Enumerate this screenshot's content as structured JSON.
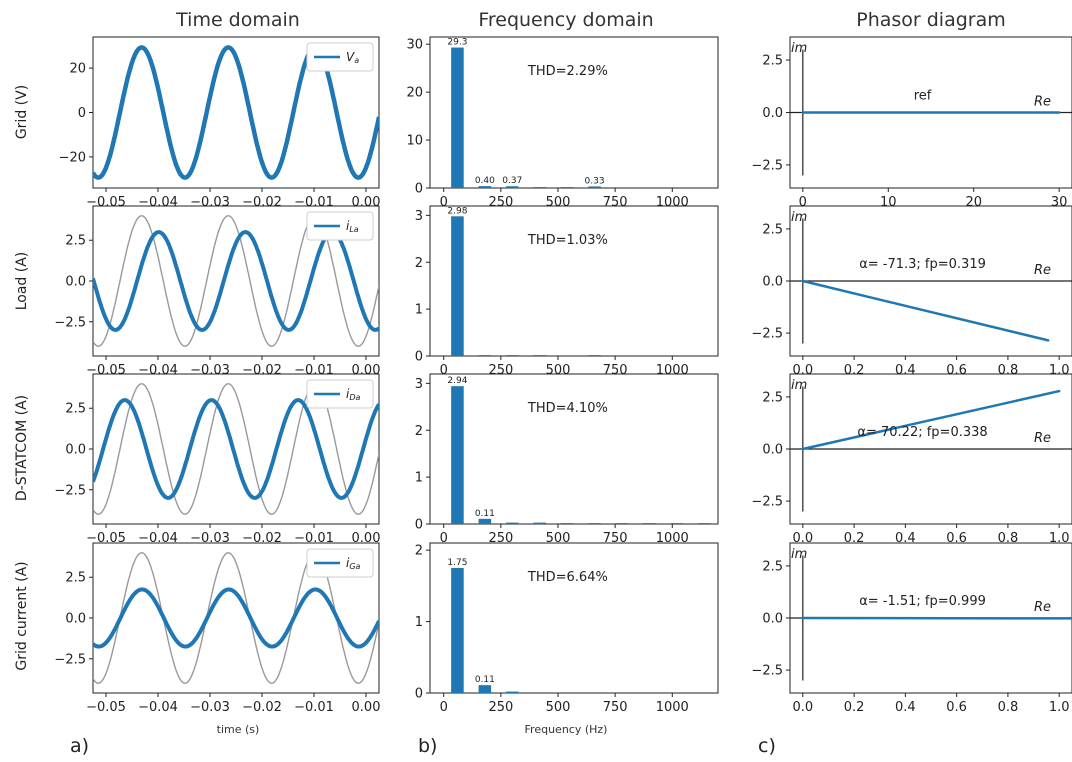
{
  "figure": {
    "columns": [
      "Time domain",
      "Frequency domain",
      "Phasor diagram"
    ],
    "rows": [
      "Grid (V)",
      "Load (A)",
      "D-STATCOM (A)",
      "Grid current (A)"
    ],
    "time_xlabel": "time (s)",
    "freq_xlabel": "Frequency (Hz)",
    "panel_letters": [
      "a)",
      "b)",
      "c)"
    ]
  },
  "chart_data": [
    {
      "type": "line",
      "panel": "time-grid",
      "xlim": [
        -0.0525,
        0.0025
      ],
      "ylim": [
        -34,
        34
      ],
      "xticks": [
        -0.05,
        -0.04,
        -0.03,
        -0.02,
        -0.01,
        0.0
      ],
      "xtick_labels": [
        "−0.05",
        "−0.04",
        "−0.03",
        "−0.02",
        "−0.01",
        "0.00"
      ],
      "yticks": [
        20,
        0,
        -20
      ],
      "ytick_labels": [
        "20",
        "0",
        "−20"
      ],
      "legend": {
        "main": "V",
        "sub": "a",
        "position": "top-right"
      },
      "series": [
        {
          "name": "Va",
          "amplitude": 29.3,
          "frequency_hz": 60,
          "phase_deg": -58,
          "color": "#1f77b4",
          "width": 4.5
        }
      ]
    },
    {
      "type": "line",
      "panel": "time-load",
      "xlim": [
        -0.0525,
        0.0025
      ],
      "ylim": [
        -4.6,
        4.6
      ],
      "xticks": [
        -0.05,
        -0.04,
        -0.03,
        -0.02,
        -0.01,
        0.0
      ],
      "xtick_labels": [
        "−0.05",
        "−0.04",
        "−0.03",
        "−0.02",
        "−0.01",
        "0.00"
      ],
      "yticks": [
        2.5,
        0.0,
        -2.5
      ],
      "ytick_labels": [
        "2.5",
        "0.0",
        "−2.5"
      ],
      "legend": {
        "main": "i",
        "sub": "La",
        "position": "top-right"
      },
      "series": [
        {
          "name": "reference",
          "amplitude": 4.0,
          "frequency_hz": 60,
          "phase_deg": -58,
          "color": "#999999",
          "width": 1.4
        },
        {
          "name": "iLa",
          "amplitude": 3.0,
          "frequency_hz": 60,
          "phase_deg": -129,
          "color": "#1f77b4",
          "width": 4.0
        }
      ]
    },
    {
      "type": "line",
      "panel": "time-dstatcom",
      "xlim": [
        -0.0525,
        0.0025
      ],
      "ylim": [
        -4.6,
        4.6
      ],
      "xticks": [
        -0.05,
        -0.04,
        -0.03,
        -0.02,
        -0.01,
        0.0
      ],
      "xtick_labels": [
        "−0.05",
        "−0.04",
        "−0.03",
        "−0.02",
        "−0.01",
        "0.00"
      ],
      "yticks": [
        2.5,
        0.0,
        -2.5
      ],
      "ytick_labels": [
        "2.5",
        "0.0",
        "−2.5"
      ],
      "legend": {
        "main": "i",
        "sub": "Da",
        "position": "top-right"
      },
      "series": [
        {
          "name": "reference",
          "amplitude": 4.0,
          "frequency_hz": 60,
          "phase_deg": -58,
          "color": "#999999",
          "width": 1.4
        },
        {
          "name": "iDa",
          "amplitude": 3.0,
          "frequency_hz": 60,
          "phase_deg": 12,
          "color": "#1f77b4",
          "width": 4.0
        }
      ]
    },
    {
      "type": "line",
      "panel": "time-gridcurrent",
      "xlim": [
        -0.0525,
        0.0025
      ],
      "ylim": [
        -4.6,
        4.6
      ],
      "xticks": [
        -0.05,
        -0.04,
        -0.03,
        -0.02,
        -0.01,
        0.0
      ],
      "xtick_labels": [
        "−0.05",
        "−0.04",
        "−0.03",
        "−0.02",
        "−0.01",
        "0.00"
      ],
      "yticks": [
        2.5,
        0.0,
        -2.5
      ],
      "ytick_labels": [
        "2.5",
        "0.0",
        "−2.5"
      ],
      "legend": {
        "main": "i",
        "sub": "Ga",
        "position": "top-right"
      },
      "series": [
        {
          "name": "reference",
          "amplitude": 4.0,
          "frequency_hz": 60,
          "phase_deg": -58,
          "color": "#999999",
          "width": 1.4
        },
        {
          "name": "iGa",
          "amplitude": 1.75,
          "frequency_hz": 60,
          "phase_deg": -60,
          "color": "#1f77b4",
          "width": 4.0
        }
      ]
    },
    {
      "type": "bar",
      "panel": "freq-grid",
      "xlim": [
        -60,
        1200
      ],
      "ylim": [
        0,
        31.5
      ],
      "xticks": [
        0,
        250,
        500,
        750,
        1000
      ],
      "xtick_labels": [
        "0",
        "250",
        "500",
        "750",
        "1000"
      ],
      "yticks": [
        0,
        10,
        20,
        30
      ],
      "ytick_labels": [
        "0",
        "10",
        "20",
        "30"
      ],
      "thd": "THD=2.29%",
      "bar_width_hz": 55,
      "frequencies": [
        60,
        180,
        300,
        420,
        540,
        660
      ],
      "values": [
        29.3,
        0.4,
        0.37,
        0.2,
        0.2,
        0.33
      ],
      "value_labels": [
        "29.3",
        "0.40",
        "0.37",
        "",
        "",
        "0.33"
      ]
    },
    {
      "type": "bar",
      "panel": "freq-load",
      "xlim": [
        -60,
        1200
      ],
      "ylim": [
        0,
        3.2
      ],
      "xticks": [
        0,
        250,
        500,
        750,
        1000
      ],
      "xtick_labels": [
        "0",
        "250",
        "500",
        "750",
        "1000"
      ],
      "yticks": [
        0,
        1,
        2,
        3
      ],
      "ytick_labels": [
        "0",
        "1",
        "2",
        "3"
      ],
      "thd": "THD=1.03%",
      "bar_width_hz": 55,
      "frequencies": [
        60,
        180,
        300,
        420,
        660
      ],
      "values": [
        2.98,
        0.02,
        0.02,
        0.02,
        0.02
      ],
      "value_labels": [
        "2.98",
        "",
        "",
        "",
        ""
      ]
    },
    {
      "type": "bar",
      "panel": "freq-dstatcom",
      "xlim": [
        -60,
        1200
      ],
      "ylim": [
        0,
        3.2
      ],
      "xticks": [
        0,
        250,
        500,
        750,
        1000
      ],
      "xtick_labels": [
        "0",
        "250",
        "500",
        "750",
        "1000"
      ],
      "yticks": [
        0,
        1,
        2,
        3
      ],
      "ytick_labels": [
        "0",
        "1",
        "2",
        "3"
      ],
      "thd": "THD=4.10%",
      "bar_width_hz": 55,
      "frequencies": [
        60,
        180,
        300,
        420,
        540,
        660,
        780,
        900,
        1020,
        1140
      ],
      "values": [
        2.94,
        0.11,
        0.03,
        0.03,
        0.02,
        0.02,
        0.02,
        0.02,
        0.02,
        0.02
      ],
      "value_labels": [
        "2.94",
        "0.11",
        "",
        "",
        "",
        "",
        "",
        "",
        "",
        ""
      ]
    },
    {
      "type": "bar",
      "panel": "freq-gridcurrent",
      "xlim": [
        -60,
        1200
      ],
      "ylim": [
        0,
        2.1
      ],
      "xticks": [
        0,
        250,
        500,
        750,
        1000
      ],
      "xtick_labels": [
        "0",
        "250",
        "500",
        "750",
        "1000"
      ],
      "yticks": [
        0,
        1,
        2
      ],
      "ytick_labels": [
        "0",
        "1",
        "2"
      ],
      "thd": "THD=6.64%",
      "bar_width_hz": 55,
      "frequencies": [
        60,
        180,
        300
      ],
      "values": [
        1.75,
        0.11,
        0.02
      ],
      "value_labels": [
        "1.75",
        "0.11",
        ""
      ]
    },
    {
      "type": "line",
      "panel": "phasor-grid",
      "xlim": [
        -1.5,
        31.5
      ],
      "ylim": [
        -3.6,
        3.6
      ],
      "xticks": [
        0,
        10,
        20,
        30
      ],
      "xtick_labels": [
        "0",
        "10",
        "20",
        "30"
      ],
      "yticks": [
        2.5,
        0.0,
        -2.5
      ],
      "ytick_labels": [
        "2.5",
        "0.0",
        "−2.5"
      ],
      "im_label": "im",
      "re_label": "Re",
      "annotation": "ref",
      "phasor": {
        "re": 30.0,
        "im": 0.0
      }
    },
    {
      "type": "line",
      "panel": "phasor-load",
      "xlim": [
        -0.05,
        1.05
      ],
      "ylim": [
        -3.6,
        3.6
      ],
      "xticks": [
        0.0,
        0.2,
        0.4,
        0.6,
        0.8,
        1.0
      ],
      "xtick_labels": [
        "0.0",
        "0.2",
        "0.4",
        "0.6",
        "0.8",
        "1.0"
      ],
      "yticks": [
        2.5,
        0.0,
        -2.5
      ],
      "ytick_labels": [
        "2.5",
        "0.0",
        "−2.5"
      ],
      "im_label": "im",
      "re_label": "Re",
      "annotation": "α= -71.3; fp=0.319",
      "phasor": {
        "re": 0.957,
        "im": -2.85
      }
    },
    {
      "type": "line",
      "panel": "phasor-dstatcom",
      "xlim": [
        -0.05,
        1.05
      ],
      "ylim": [
        -3.6,
        3.6
      ],
      "xticks": [
        0.0,
        0.2,
        0.4,
        0.6,
        0.8,
        1.0
      ],
      "xtick_labels": [
        "0.0",
        "0.2",
        "0.4",
        "0.6",
        "0.8",
        "1.0"
      ],
      "yticks": [
        2.5,
        0.0,
        -2.5
      ],
      "ytick_labels": [
        "2.5",
        "0.0",
        "−2.5"
      ],
      "im_label": "im",
      "re_label": "Re",
      "annotation": "α= 70.22; fp=0.338",
      "phasor": {
        "re": 1.0,
        "im": 2.78
      }
    },
    {
      "type": "line",
      "panel": "phasor-gridcurrent",
      "xlim": [
        -0.05,
        1.05
      ],
      "ylim": [
        -3.6,
        3.6
      ],
      "xticks": [
        0.0,
        0.2,
        0.4,
        0.6,
        0.8,
        1.0
      ],
      "xtick_labels": [
        "0.0",
        "0.2",
        "0.4",
        "0.6",
        "0.8",
        "1.0"
      ],
      "yticks": [
        2.5,
        0.0,
        -2.5
      ],
      "ytick_labels": [
        "2.5",
        "0.0",
        "−2.5"
      ],
      "im_label": "im",
      "re_label": "Re",
      "annotation": "α= -1.51; fp=0.999",
      "phasor": {
        "re": 1.05,
        "im": -0.02
      }
    }
  ]
}
